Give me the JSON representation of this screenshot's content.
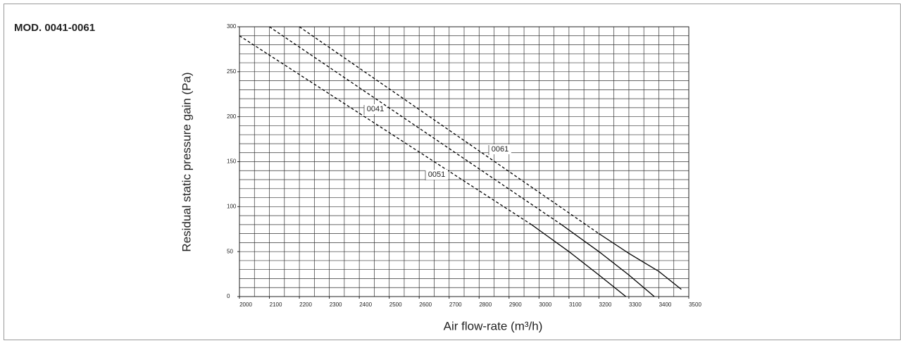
{
  "chart_data": {
    "type": "line",
    "title": "MOD. 0041-0061",
    "x_label": "Air flow-rate (m³/h)",
    "y_label": "Residual static pressure gain (Pa)",
    "xlim": [
      2000,
      3500
    ],
    "ylim": [
      0,
      300
    ],
    "xticks": [
      2000,
      2100,
      2200,
      2300,
      2400,
      2500,
      2600,
      2700,
      2800,
      2900,
      3000,
      3100,
      3200,
      3300,
      3400,
      3500
    ],
    "yticks": [
      0,
      50,
      100,
      150,
      200,
      250,
      300
    ],
    "grid": true,
    "minor_grid": {
      "x": 50,
      "y": 10
    },
    "dashed_segments": 1,
    "series": [
      {
        "name": "0041",
        "color": "#000000",
        "x": [
          2000,
          2975,
          3100,
          3200,
          3290
        ],
        "values": [
          290,
          80,
          50,
          24,
          0
        ]
      },
      {
        "name": "0051",
        "color": "#000000",
        "x": [
          2100,
          3075,
          3200,
          3300,
          3385
        ],
        "values": [
          300,
          80,
          50,
          24,
          0
        ]
      },
      {
        "name": "0061",
        "color": "#000000",
        "x": [
          2200,
          3200,
          3300,
          3400,
          3475
        ],
        "values": [
          300,
          70,
          48,
          28,
          8
        ]
      }
    ]
  }
}
